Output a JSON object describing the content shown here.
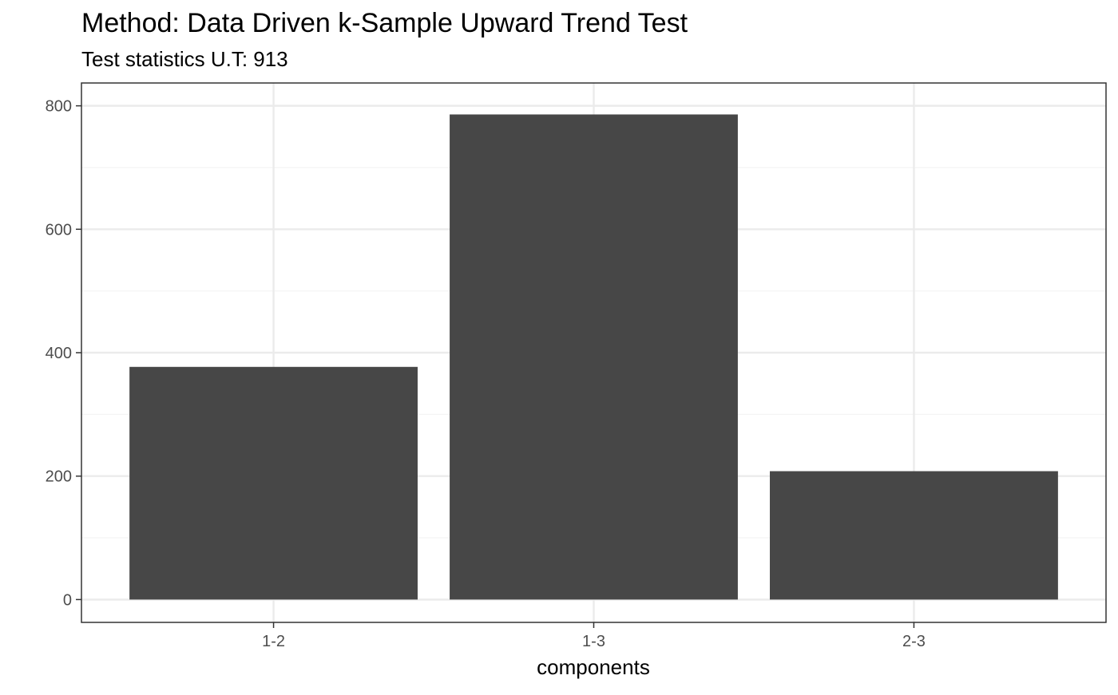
{
  "chart_data": {
    "type": "bar",
    "title": "Method: Data Driven k-Sample Upward Trend Test",
    "subtitle": "Test statistics U.T: 913",
    "xlabel": "components",
    "ylabel": "",
    "categories": [
      "1-2",
      "1-3",
      "2-3"
    ],
    "values": [
      377,
      786,
      208
    ],
    "ylim": [
      -37,
      837
    ],
    "y_ticks": [
      0,
      200,
      400,
      600,
      800
    ],
    "grid": true,
    "legend": "none",
    "colors": {
      "bar": "#474747",
      "panel_border": "#333333",
      "grid_major": "#ebebeb",
      "grid_minor": "#f4f4f4",
      "tick_label": "#4d4d4d",
      "text": "#000000",
      "background": "#ffffff"
    }
  }
}
